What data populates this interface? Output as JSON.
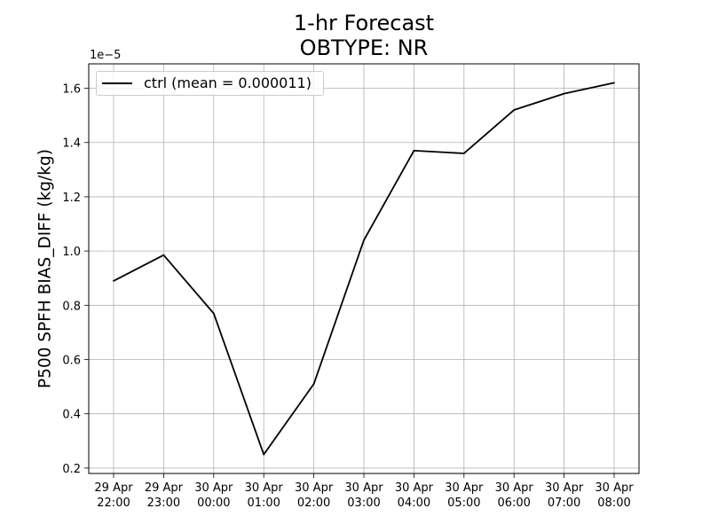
{
  "chart_data": {
    "type": "line",
    "title": [
      "1-hr Forecast",
      "OBTYPE: NR"
    ],
    "ylabel": "P500 SPFH BIAS_DIFF (kg/kg)",
    "y_offset_label": "1e−5",
    "categories": [
      [
        "29 Apr",
        "22:00"
      ],
      [
        "29 Apr",
        "23:00"
      ],
      [
        "30 Apr",
        "00:00"
      ],
      [
        "30 Apr",
        "01:00"
      ],
      [
        "30 Apr",
        "02:00"
      ],
      [
        "30 Apr",
        "03:00"
      ],
      [
        "30 Apr",
        "04:00"
      ],
      [
        "30 Apr",
        "05:00"
      ],
      [
        "30 Apr",
        "06:00"
      ],
      [
        "30 Apr",
        "07:00"
      ],
      [
        "30 Apr",
        "08:00"
      ]
    ],
    "ylim": [
      0.18,
      1.69
    ],
    "yticks": [
      "0.2",
      "0.4",
      "0.6",
      "0.8",
      "1.0",
      "1.2",
      "1.4",
      "1.6"
    ],
    "grid": true,
    "legend_position": "top-left",
    "series": [
      {
        "name": "ctrl (mean = 0.000011)",
        "color": "#000000",
        "values": [
          0.89,
          0.985,
          0.77,
          0.25,
          0.51,
          1.04,
          1.37,
          1.36,
          1.52,
          1.58,
          1.62
        ]
      }
    ]
  }
}
